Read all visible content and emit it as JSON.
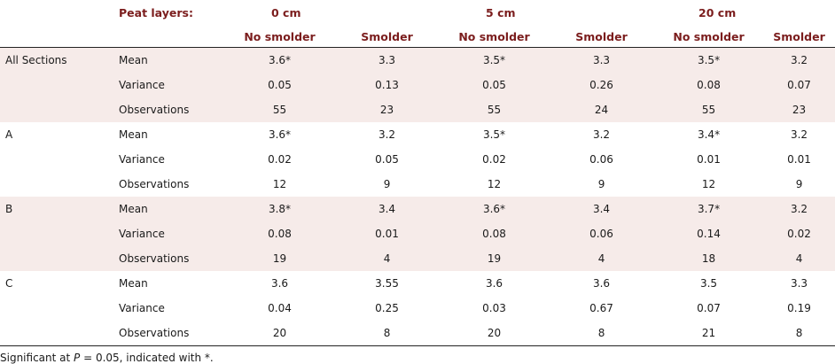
{
  "header": {
    "peat_label": "Peat layers:",
    "groups": [
      "0 cm",
      "5 cm",
      "20 cm"
    ],
    "subcols": [
      "No smolder",
      "Smolder",
      "No smolder",
      "Smolder",
      "No smolder",
      "Smolder"
    ]
  },
  "sections": [
    {
      "name": "All Sections",
      "rows": [
        {
          "label": "Mean",
          "values": [
            "3.6*",
            "3.3",
            "3.5*",
            "3.3",
            "3.5*",
            "3.2"
          ]
        },
        {
          "label": "Variance",
          "values": [
            "0.05",
            "0.13",
            "0.05",
            "0.26",
            "0.08",
            "0.07"
          ]
        },
        {
          "label": "Observations",
          "values": [
            "55",
            "23",
            "55",
            "24",
            "55",
            "23"
          ]
        }
      ]
    },
    {
      "name": "A",
      "rows": [
        {
          "label": "Mean",
          "values": [
            "3.6*",
            "3.2",
            "3.5*",
            "3.2",
            "3.4*",
            "3.2"
          ]
        },
        {
          "label": "Variance",
          "values": [
            "0.02",
            "0.05",
            "0.02",
            "0.06",
            "0.01",
            "0.01"
          ]
        },
        {
          "label": "Observations",
          "values": [
            "12",
            "9",
            "12",
            "9",
            "12",
            "9"
          ]
        }
      ]
    },
    {
      "name": "B",
      "rows": [
        {
          "label": "Mean",
          "values": [
            "3.8*",
            "3.4",
            "3.6*",
            "3.4",
            "3.7*",
            "3.2"
          ]
        },
        {
          "label": "Variance",
          "values": [
            "0.08",
            "0.01",
            "0.08",
            "0.06",
            "0.14",
            "0.02"
          ]
        },
        {
          "label": "Observations",
          "values": [
            "19",
            "4",
            "19",
            "4",
            "18",
            "4"
          ]
        }
      ]
    },
    {
      "name": "C",
      "rows": [
        {
          "label": "Mean",
          "values": [
            "3.6",
            "3.55",
            "3.6",
            "3.6",
            "3.5",
            "3.3"
          ]
        },
        {
          "label": "Variance",
          "values": [
            "0.04",
            "0.25",
            "0.03",
            "0.67",
            "0.07",
            "0.19"
          ]
        },
        {
          "label": "Observations",
          "values": [
            "20",
            "8",
            "20",
            "8",
            "21",
            "8"
          ]
        }
      ]
    }
  ],
  "footnote": {
    "prefix": "Significant at ",
    "variable": "P",
    "suffix": " = 0.05, indicated with *."
  },
  "colors": {
    "header_text": "#7b1d1d",
    "shaded_row": "#f6ebe9"
  }
}
